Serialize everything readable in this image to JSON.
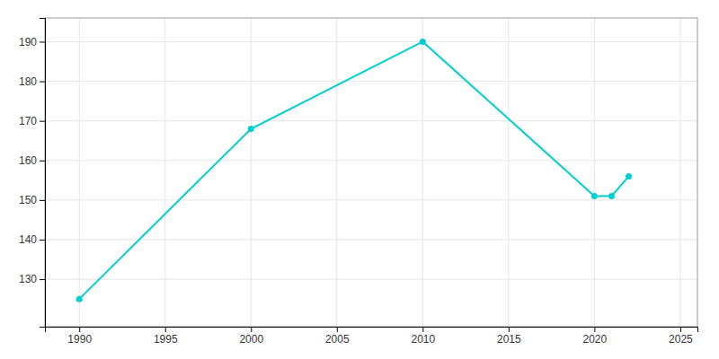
{
  "chart_data": {
    "type": "line",
    "x": [
      1990,
      2000,
      2010,
      2020,
      2021,
      2022
    ],
    "values": [
      125,
      168,
      190,
      151,
      151,
      156
    ],
    "color": "#00CED1",
    "marker": "circle",
    "xlim": [
      1988,
      2026
    ],
    "ylim": [
      118,
      196
    ],
    "xticks": [
      1990,
      1995,
      2000,
      2005,
      2010,
      2015,
      2020,
      2025
    ],
    "yticks": [
      130,
      140,
      150,
      160,
      170,
      180,
      190
    ],
    "grid": true
  }
}
